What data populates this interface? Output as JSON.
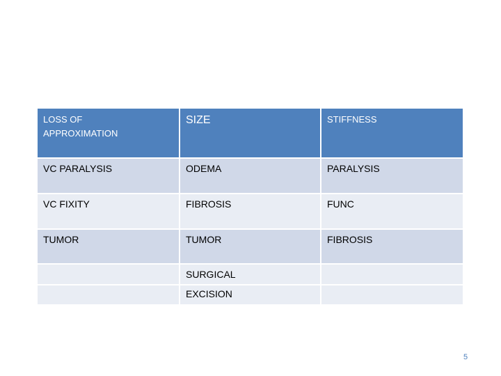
{
  "table": {
    "header": [
      "LOSS OF APPROXIMATION",
      "SIZE",
      "STIFFNESS"
    ],
    "rows": [
      [
        "VC  PARALYSIS",
        "ODEMA",
        "PARALYSIS"
      ],
      [
        "VC  FIXITY",
        "FIBROSIS",
        "FUNC"
      ],
      [
        "TUMOR",
        "TUMOR",
        "FIBROSIS"
      ]
    ],
    "last_row_middle": [
      "SURGICAL",
      "EXCISION"
    ]
  },
  "page_number": "5"
}
